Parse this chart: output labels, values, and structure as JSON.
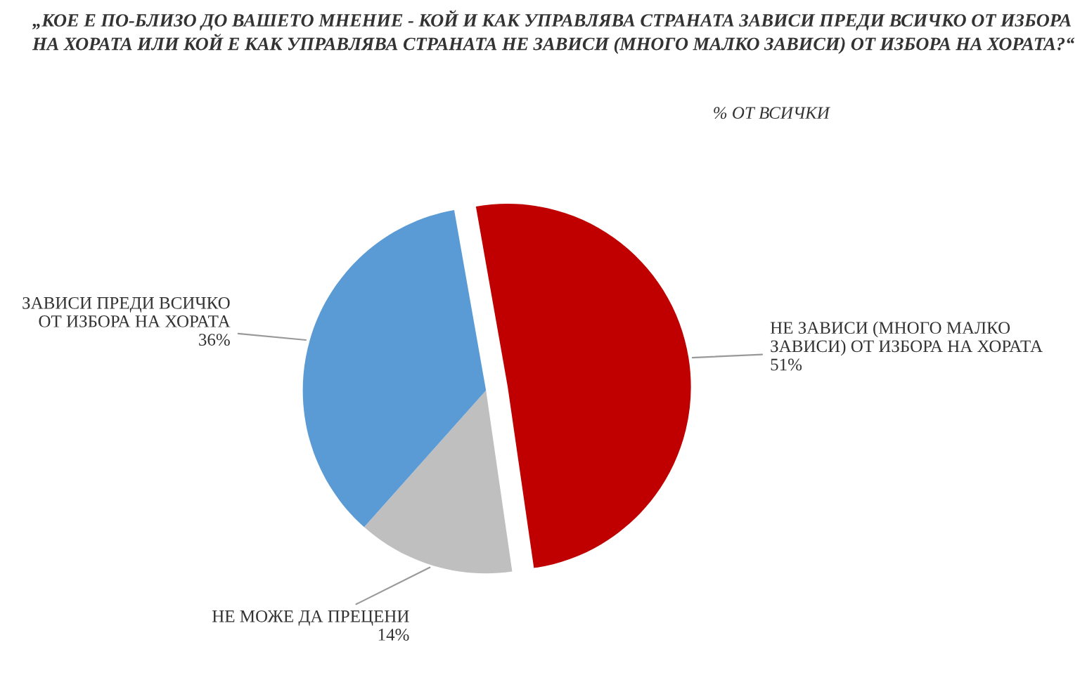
{
  "chart_data": {
    "type": "pie",
    "title": "„КОЕ Е ПО-БЛИЗО ДО ВАШЕТО МНЕНИЕ - КОЙ И КАК УПРАВЛЯВА СТРАНАТА ЗАВИСИ ПРЕДИ ВСИЧКО ОТ ИЗБОРА НА ХОРАТА ИЛИ КОЙ Е КАК УПРАВЛЯВА СТРАНАТА НЕ ЗАВИСИ (МНОГО МАЛКО ЗАВИСИ) ОТ ИЗБОРА НА ХОРАТА?“",
    "subtitle": "% ОТ ВСИЧКИ",
    "categories": [
      "НЕ ЗАВИСИ (МНОГО МАЛКО ЗАВИСИ) ОТ ИЗБОРА НА ХОРАТА",
      "НЕ МОЖЕ ДА ПРЕЦЕНИ",
      "ЗАВИСИ ПРЕДИ ВСИЧКО ОТ ИЗБОРА НА ХОРАТА"
    ],
    "values": [
      51,
      14,
      36
    ],
    "value_labels": [
      "51%",
      "14%",
      "36%"
    ],
    "colors": [
      "#c00000",
      "#bfbfbf",
      "#5b9bd5"
    ],
    "legend": false
  }
}
